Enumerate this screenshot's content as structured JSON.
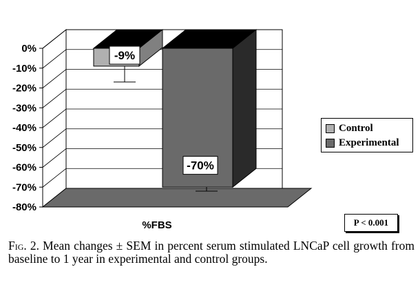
{
  "chart_data": {
    "type": "bar",
    "title": "",
    "xlabel": "%FBS",
    "ylabel": "",
    "categories": [
      "%FBS"
    ],
    "series": [
      {
        "name": "Control",
        "values": [
          -9
        ],
        "color": "#b0b0b0"
      },
      {
        "name": "Experimental",
        "values": [
          -70
        ],
        "color": "#6a6a6a"
      }
    ],
    "data_labels": [
      "-9%",
      "-70%"
    ],
    "ylim": [
      -80,
      0
    ],
    "yticks": [
      0,
      -10,
      -20,
      -30,
      -40,
      -50,
      -60,
      -70,
      -80
    ],
    "ytick_labels": [
      "0%",
      "-10%",
      "-20%",
      "-30%",
      "-40%",
      "-50%",
      "-60%",
      "-70%",
      "-80%"
    ],
    "grid": true,
    "legend_position": "right",
    "error_bars_sem": [
      8,
      2
    ],
    "three_d": true,
    "colors": {
      "wall": "#ffffff",
      "floor": "#6a6a6a",
      "ceiling": "#000000",
      "experimental_side": "#2a2a2a",
      "gridline": "#000000"
    }
  },
  "annotation": {
    "p_value": "P < 0.001"
  },
  "caption": {
    "label": "Fig. 2.",
    "text": " Mean changes ± SEM in percent serum stimulated LNCaP cell growth from baseline to 1 year in experimental and control groups."
  }
}
